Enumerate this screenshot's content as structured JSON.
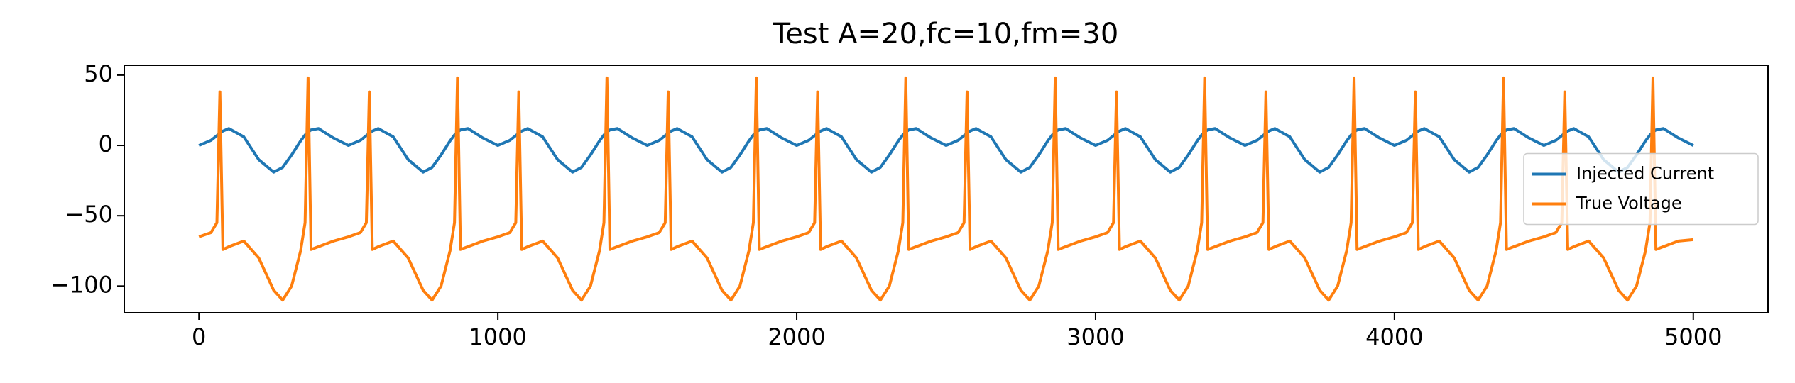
{
  "chart_data": {
    "type": "line",
    "title": "Test A=20,fc=10,fm=30",
    "x": [
      0,
      40,
      60,
      70,
      80,
      100,
      150,
      200,
      250,
      280,
      310,
      340,
      355,
      365,
      375,
      400,
      450,
      500,
      540,
      560,
      570,
      580,
      600,
      650,
      700,
      750,
      780,
      810,
      840,
      855,
      865,
      875,
      900,
      950,
      1000,
      1040,
      1060,
      1070,
      1080,
      1100,
      1150,
      1200,
      1250,
      1280,
      1310,
      1340,
      1355,
      1365,
      1375,
      1400,
      1450,
      1500,
      1540,
      1560,
      1570,
      1580,
      1600,
      1650,
      1700,
      1750,
      1780,
      1810,
      1840,
      1855,
      1865,
      1875,
      1900,
      1950,
      2000,
      2040,
      2060,
      2070,
      2080,
      2100,
      2150,
      2200,
      2250,
      2280,
      2310,
      2340,
      2355,
      2365,
      2375,
      2400,
      2450,
      2500,
      2540,
      2560,
      2570,
      2580,
      2600,
      2650,
      2700,
      2750,
      2780,
      2810,
      2840,
      2855,
      2865,
      2875,
      2900,
      2950,
      3000,
      3040,
      3060,
      3070,
      3080,
      3100,
      3150,
      3200,
      3250,
      3280,
      3310,
      3340,
      3355,
      3365,
      3375,
      3400,
      3450,
      3500,
      3540,
      3560,
      3570,
      3580,
      3600,
      3650,
      3700,
      3750,
      3780,
      3810,
      3840,
      3855,
      3865,
      3875,
      3900,
      3950,
      4000,
      4040,
      4060,
      4070,
      4080,
      4100,
      4150,
      4200,
      4250,
      4280,
      4310,
      4340,
      4355,
      4365,
      4375,
      4400,
      4450,
      4500,
      4540,
      4560,
      4570,
      4580,
      4600,
      4650,
      4700,
      4750,
      4780,
      4810,
      4840,
      4855,
      4865,
      4875,
      4900,
      4950,
      5000
    ],
    "series": [
      {
        "name": "Injected Current",
        "color": "#1f77b4",
        "values": [
          0,
          3.6,
          7.0,
          8.7,
          10.2,
          12.0,
          6.1,
          -10.1,
          -19.0,
          -15.6,
          -6.8,
          3.2,
          7.4,
          9.5,
          11.0,
          12.0,
          5.3,
          0,
          3.6,
          7.0,
          8.7,
          10.2,
          12.0,
          6.1,
          -10.1,
          -19.0,
          -15.6,
          -6.8,
          3.2,
          7.4,
          9.5,
          11.0,
          12.0,
          5.3,
          0,
          3.6,
          7.0,
          8.7,
          10.2,
          12.0,
          6.1,
          -10.1,
          -19.0,
          -15.6,
          -6.8,
          3.2,
          7.4,
          9.5,
          11.0,
          12.0,
          5.3,
          0,
          3.6,
          7.0,
          8.7,
          10.2,
          12.0,
          6.1,
          -10.1,
          -19.0,
          -15.6,
          -6.8,
          3.2,
          7.4,
          9.5,
          11.0,
          12.0,
          5.3,
          0,
          3.6,
          7.0,
          8.7,
          10.2,
          12.0,
          6.1,
          -10.1,
          -19.0,
          -15.6,
          -6.8,
          3.2,
          7.4,
          9.5,
          11.0,
          12.0,
          5.3,
          0,
          3.6,
          7.0,
          8.7,
          10.2,
          12.0,
          6.1,
          -10.1,
          -19.0,
          -15.6,
          -6.8,
          3.2,
          7.4,
          9.5,
          11.0,
          12.0,
          5.3,
          0,
          3.6,
          7.0,
          8.7,
          10.2,
          12.0,
          6.1,
          -10.1,
          -19.0,
          -15.6,
          -6.8,
          3.2,
          7.4,
          9.5,
          11.0,
          12.0,
          5.3,
          0,
          3.6,
          7.0,
          8.7,
          10.2,
          12.0,
          6.1,
          -10.1,
          -19.0,
          -15.6,
          -6.8,
          3.2,
          7.4,
          9.5,
          11.0,
          12.0,
          5.3,
          0,
          3.6,
          7.0,
          8.7,
          10.2,
          12.0,
          6.1,
          -10.1,
          -19.0,
          -15.6,
          -6.8,
          3.2,
          7.4,
          9.5,
          11.0,
          12.0,
          5.3,
          0,
          3.6,
          7.0,
          8.7,
          10.2,
          12.0,
          6.1,
          -10.1,
          -19.0,
          -15.6,
          -6.8,
          3.2,
          7.4,
          9.5,
          11.0,
          12.0,
          5.3,
          0
        ]
      },
      {
        "name": "True Voltage",
        "color": "#ff7f0e",
        "values": [
          -65,
          -62,
          -55,
          38,
          -74,
          -72,
          -68,
          -80,
          -103,
          -110,
          -100,
          -75,
          -55,
          48,
          -74,
          -72,
          -68,
          -65,
          -62,
          -55,
          38,
          -74,
          -72,
          -68,
          -80,
          -103,
          -110,
          -100,
          -75,
          -55,
          48,
          -74,
          -72,
          -68,
          -65,
          -62,
          -55,
          38,
          -74,
          -72,
          -68,
          -80,
          -103,
          -110,
          -100,
          -75,
          -55,
          48,
          -74,
          -72,
          -68,
          -65,
          -62,
          -55,
          38,
          -74,
          -72,
          -68,
          -80,
          -103,
          -110,
          -100,
          -75,
          -55,
          48,
          -74,
          -72,
          -68,
          -65,
          -62,
          -55,
          38,
          -74,
          -72,
          -68,
          -80,
          -103,
          -110,
          -100,
          -75,
          -55,
          48,
          -74,
          -72,
          -68,
          -65,
          -62,
          -55,
          38,
          -74,
          -72,
          -68,
          -80,
          -103,
          -110,
          -100,
          -75,
          -55,
          48,
          -74,
          -72,
          -68,
          -65,
          -62,
          -55,
          38,
          -74,
          -72,
          -68,
          -80,
          -103,
          -110,
          -100,
          -75,
          -55,
          48,
          -74,
          -72,
          -68,
          -65,
          -62,
          -55,
          38,
          -74,
          -72,
          -68,
          -80,
          -103,
          -110,
          -100,
          -75,
          -55,
          48,
          -74,
          -72,
          -68,
          -65,
          -62,
          -55,
          38,
          -74,
          -72,
          -68,
          -80,
          -103,
          -110,
          -100,
          -75,
          -55,
          48,
          -74,
          -72,
          -68,
          -65,
          -62,
          -55,
          38,
          -74,
          -72,
          -68,
          -80,
          -103,
          -110,
          -100,
          -75,
          -55,
          48,
          -74,
          -72,
          -68,
          -67
        ]
      }
    ],
    "xlim": [
      -250,
      5250
    ],
    "ylim": [
      -119,
      57
    ],
    "xticks": [
      0,
      1000,
      2000,
      3000,
      4000,
      5000
    ],
    "yticks": [
      50,
      0,
      {
        "value": -50,
        "label": "−50"
      },
      {
        "value": -100,
        "label": "−100"
      }
    ],
    "legend": "center right"
  }
}
